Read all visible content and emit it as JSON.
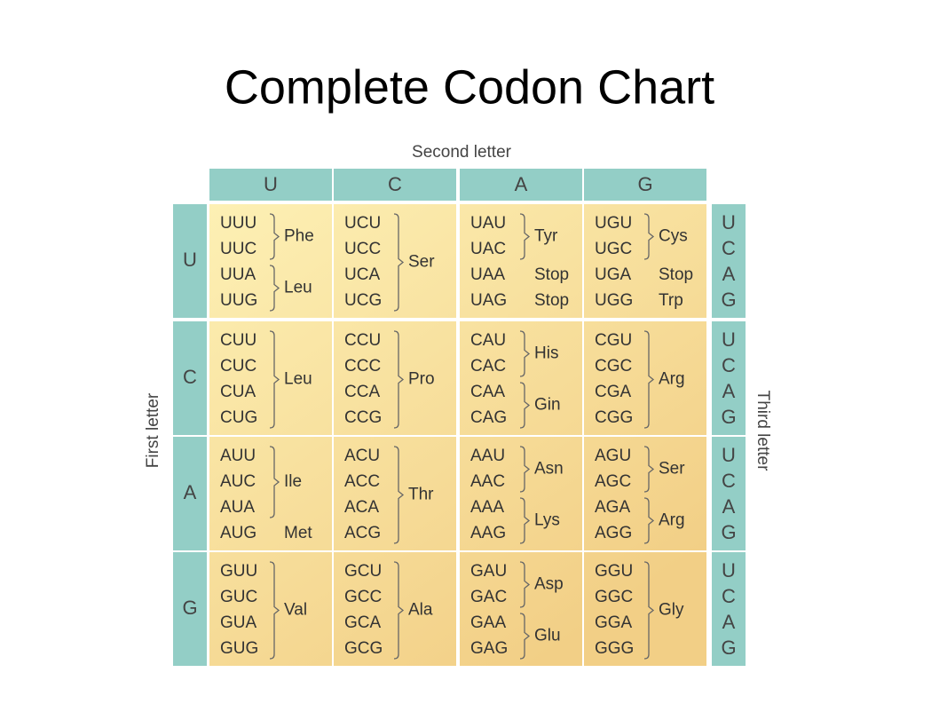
{
  "title": "Complete Codon Chart",
  "table": {
    "second_letter_label": "Second letter",
    "first_letter_label": "First letter",
    "third_letter_label": "Third letter",
    "columns": [
      "U",
      "C",
      "A",
      "G"
    ],
    "rows": [
      {
        "letter": "U",
        "third_letters": [
          "U",
          "C",
          "A",
          "G"
        ],
        "cells": [
          {
            "groups": [
              {
                "codons": [
                  "UUU",
                  "UUC"
                ],
                "label": "Phe"
              },
              {
                "codons": [
                  "UUA",
                  "UUG"
                ],
                "label": "Leu"
              }
            ]
          },
          {
            "groups": [
              {
                "codons": [
                  "UCU",
                  "UCC",
                  "UCA",
                  "UCG"
                ],
                "label": "Ser"
              }
            ]
          },
          {
            "groups": [
              {
                "codons": [
                  "UAU",
                  "UAC"
                ],
                "label": "Tyr"
              },
              {
                "codons": [
                  "UAA"
                ],
                "label": "Stop"
              },
              {
                "codons": [
                  "UAG"
                ],
                "label": "Stop"
              }
            ]
          },
          {
            "groups": [
              {
                "codons": [
                  "UGU",
                  "UGC"
                ],
                "label": "Cys"
              },
              {
                "codons": [
                  "UGA"
                ],
                "label": "Stop"
              },
              {
                "codons": [
                  "UGG"
                ],
                "label": "Trp"
              }
            ]
          }
        ]
      },
      {
        "letter": "C",
        "third_letters": [
          "U",
          "C",
          "A",
          "G"
        ],
        "cells": [
          {
            "groups": [
              {
                "codons": [
                  "CUU",
                  "CUC",
                  "CUA",
                  "CUG"
                ],
                "label": "Leu"
              }
            ]
          },
          {
            "groups": [
              {
                "codons": [
                  "CCU",
                  "CCC",
                  "CCA",
                  "CCG"
                ],
                "label": "Pro"
              }
            ]
          },
          {
            "groups": [
              {
                "codons": [
                  "CAU",
                  "CAC"
                ],
                "label": "His"
              },
              {
                "codons": [
                  "CAA",
                  "CAG"
                ],
                "label": "Gin"
              }
            ]
          },
          {
            "groups": [
              {
                "codons": [
                  "CGU",
                  "CGC",
                  "CGA",
                  "CGG"
                ],
                "label": "Arg"
              }
            ]
          }
        ]
      },
      {
        "letter": "A",
        "third_letters": [
          "U",
          "C",
          "A",
          "G"
        ],
        "cells": [
          {
            "groups": [
              {
                "codons": [
                  "AUU",
                  "AUC",
                  "AUA"
                ],
                "label": "Ile"
              },
              {
                "codons": [
                  "AUG"
                ],
                "label": "Met"
              }
            ]
          },
          {
            "groups": [
              {
                "codons": [
                  "ACU",
                  "ACC",
                  "ACA",
                  "ACG"
                ],
                "label": "Thr"
              }
            ]
          },
          {
            "groups": [
              {
                "codons": [
                  "AAU",
                  "AAC"
                ],
                "label": "Asn"
              },
              {
                "codons": [
                  "AAA",
                  "AAG"
                ],
                "label": "Lys"
              }
            ]
          },
          {
            "groups": [
              {
                "codons": [
                  "AGU",
                  "AGC"
                ],
                "label": "Ser"
              },
              {
                "codons": [
                  "AGA",
                  "AGG"
                ],
                "label": "Arg"
              }
            ]
          }
        ]
      },
      {
        "letter": "G",
        "third_letters": [
          "U",
          "C",
          "A",
          "G"
        ],
        "cells": [
          {
            "groups": [
              {
                "codons": [
                  "GUU",
                  "GUC",
                  "GUA",
                  "GUG"
                ],
                "label": "Val"
              }
            ]
          },
          {
            "groups": [
              {
                "codons": [
                  "GCU",
                  "GCC",
                  "GCA",
                  "GCG"
                ],
                "label": "Ala"
              }
            ]
          },
          {
            "groups": [
              {
                "codons": [
                  "GAU",
                  "GAC"
                ],
                "label": "Asp"
              },
              {
                "codons": [
                  "GAA",
                  "GAG"
                ],
                "label": "Glu"
              }
            ]
          },
          {
            "groups": [
              {
                "codons": [
                  "GGU",
                  "GGC",
                  "GGA",
                  "GGG"
                ],
                "label": "Gly"
              }
            ]
          }
        ]
      }
    ]
  }
}
